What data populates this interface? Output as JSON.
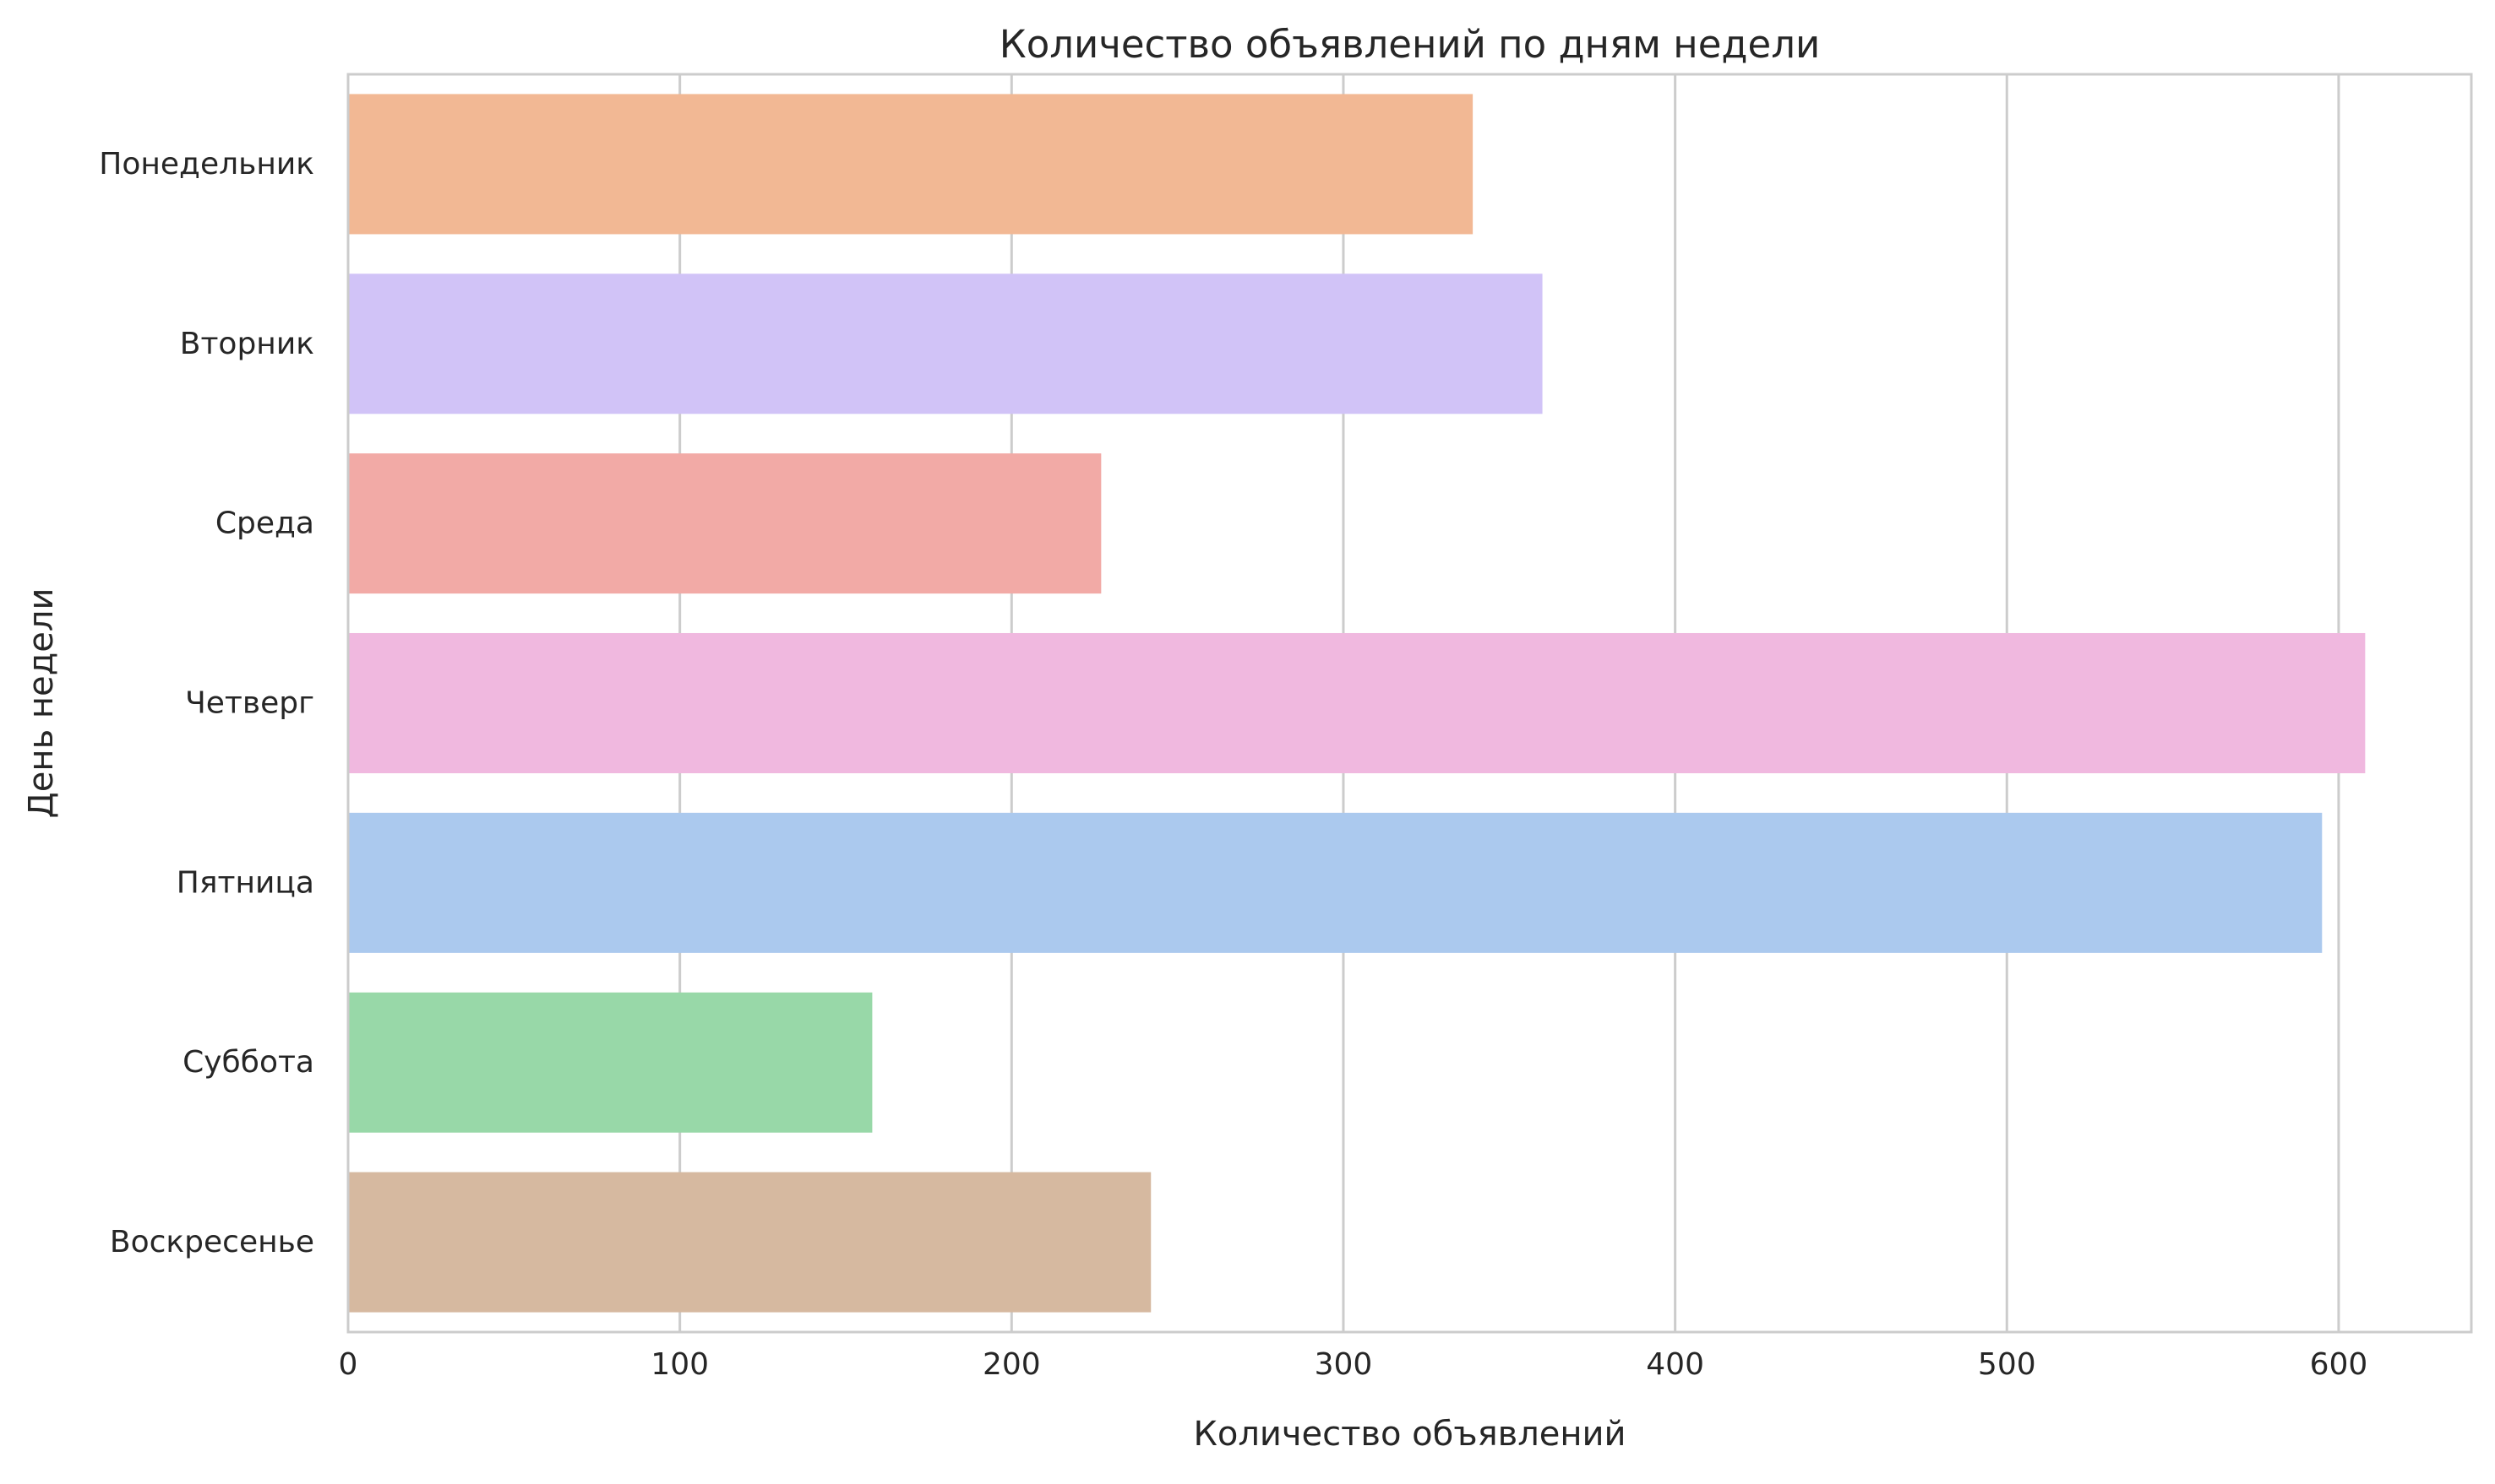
{
  "chart_data": {
    "type": "bar",
    "orientation": "horizontal",
    "title": "Количество объявлений по дням недели",
    "xlabel": "Количество объявлений",
    "ylabel": "День недели",
    "categories": [
      "Понедельник",
      "Вторник",
      "Среда",
      "Четверг",
      "Пятница",
      "Суббота",
      "Воскресенье"
    ],
    "values": [
      339,
      360,
      227,
      608,
      595,
      158,
      242
    ],
    "colors": [
      "#f2b894",
      "#d1c3f7",
      "#f2aaa6",
      "#f0b8df",
      "#abc9ee",
      "#98d8a8",
      "#d6b9a0"
    ],
    "xlim": [
      0,
      640
    ],
    "xticks": [
      0,
      100,
      200,
      300,
      400,
      500,
      600
    ],
    "xtick_labels": [
      "0",
      "100",
      "200",
      "300",
      "400",
      "500",
      "600"
    ],
    "grid": true,
    "grid_axis": "x",
    "grid_color": "#cccccc",
    "background": "#ffffff"
  }
}
